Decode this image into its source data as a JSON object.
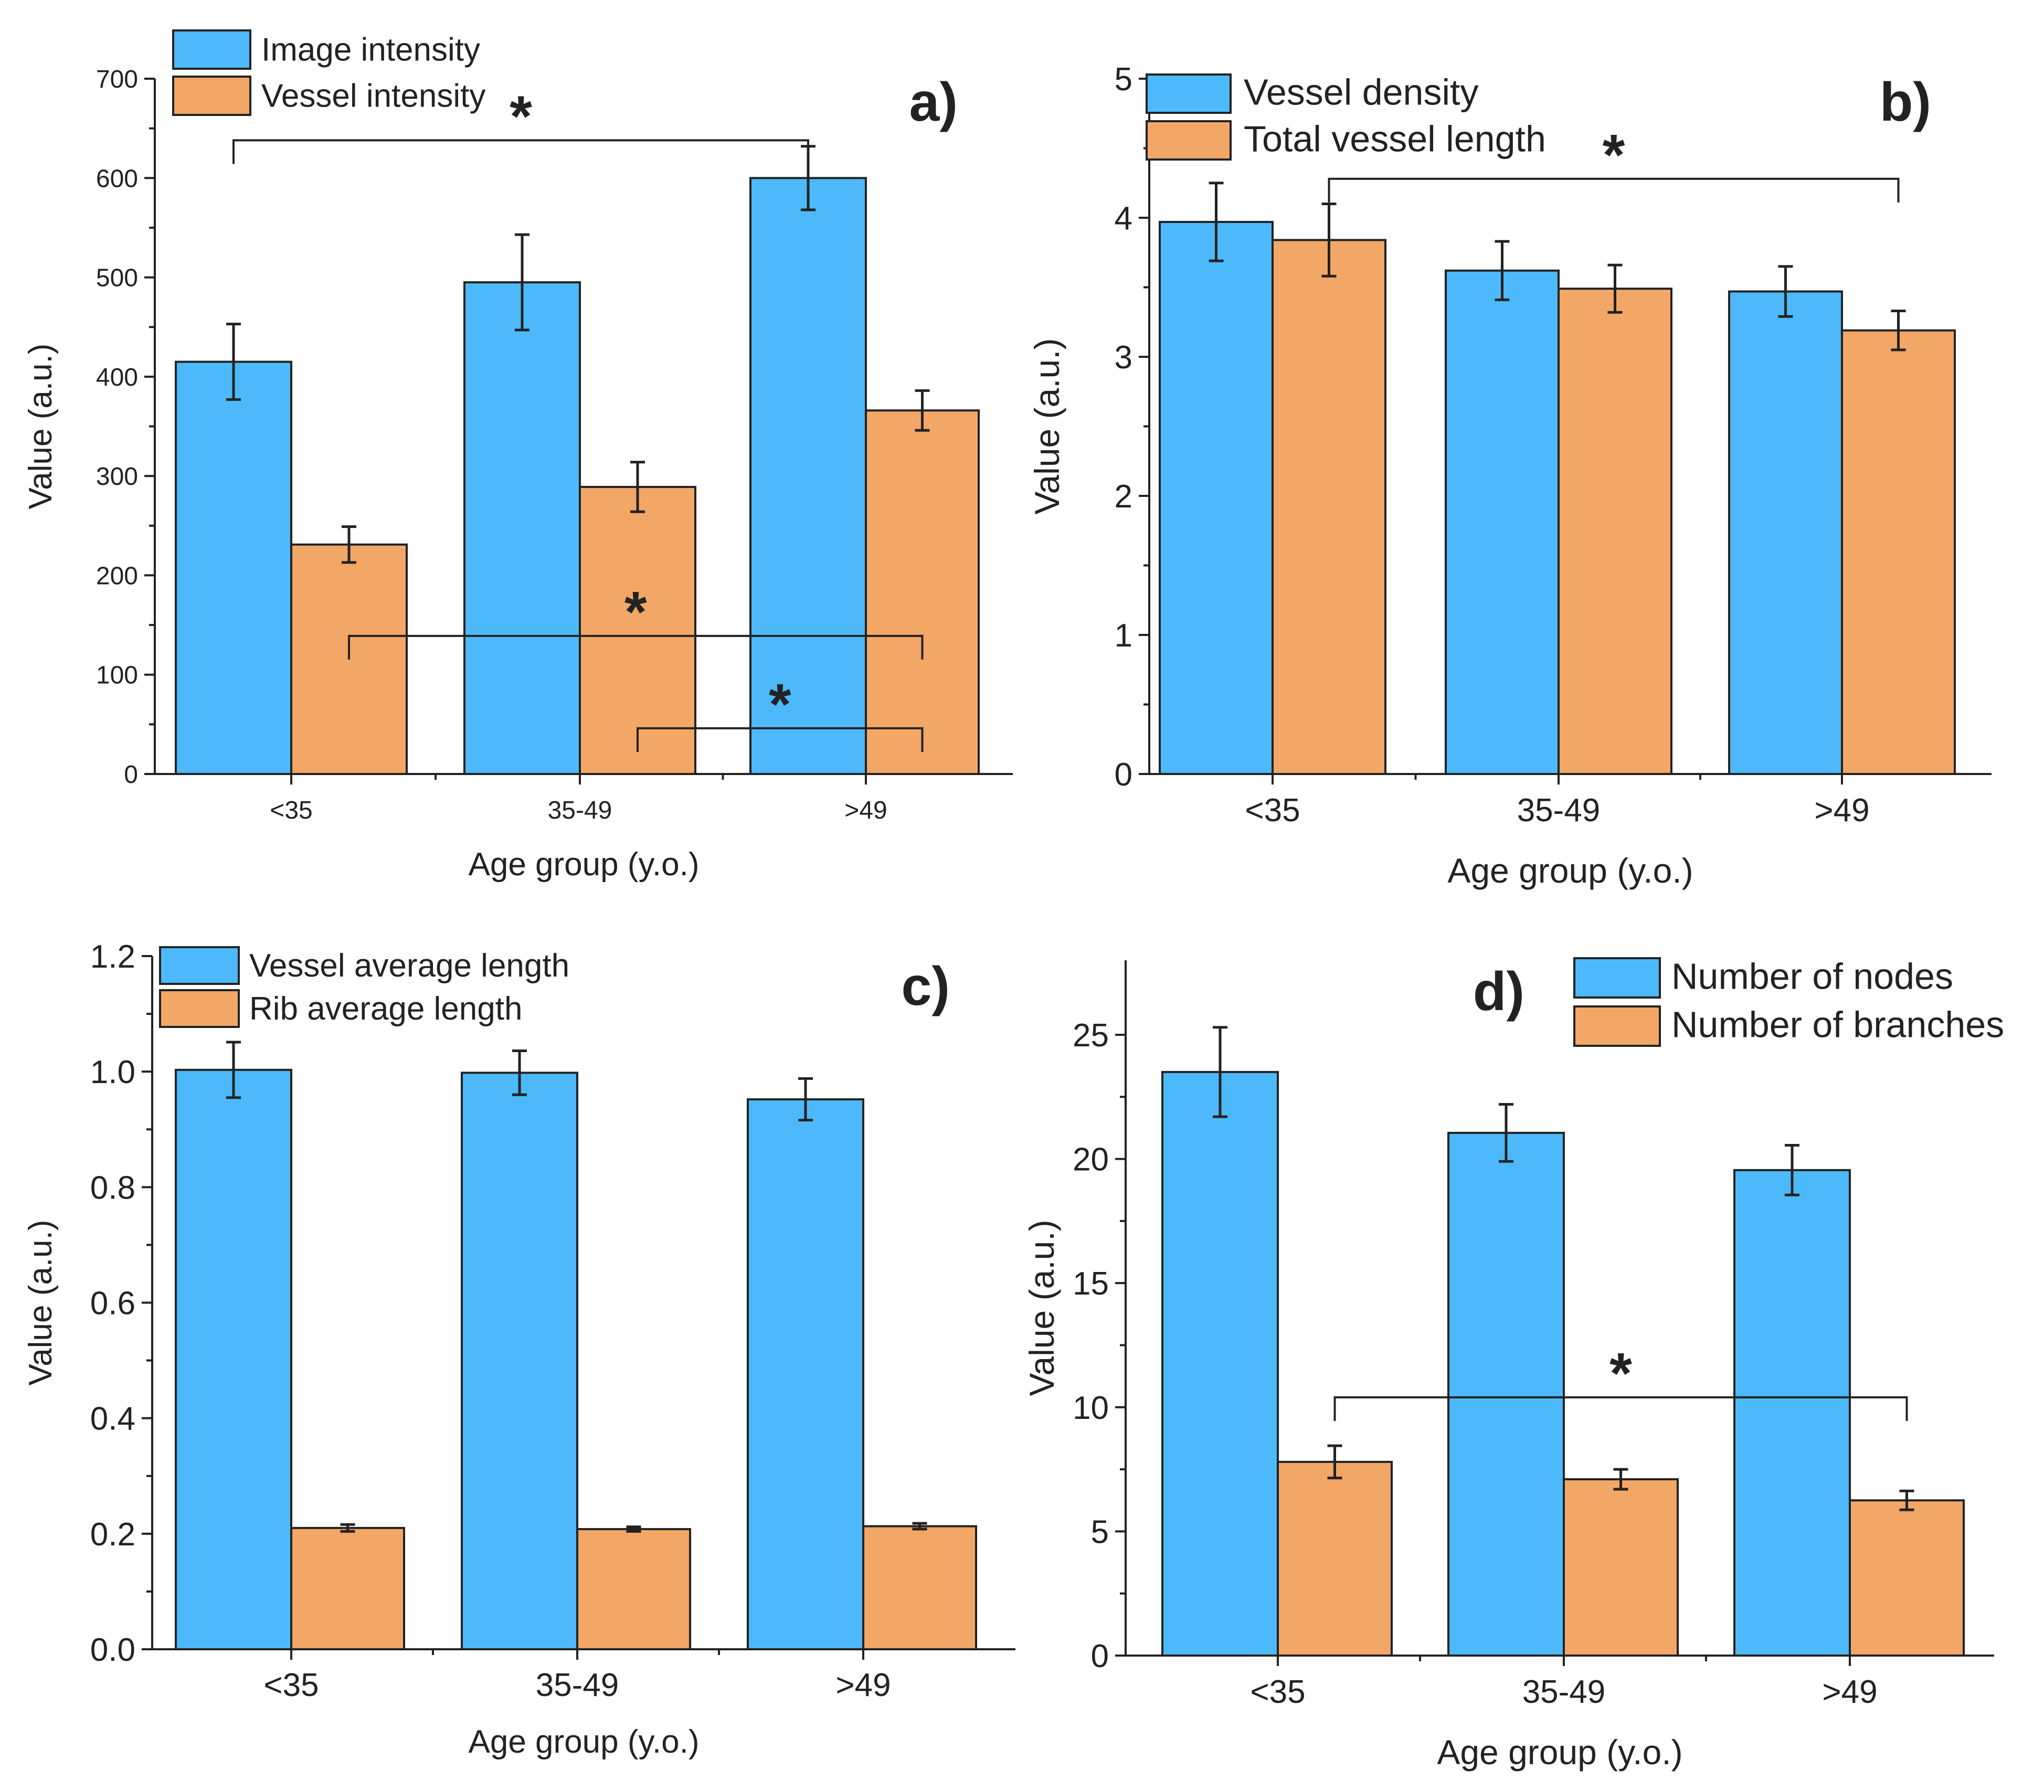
{
  "colors": {
    "series1": "#4DB9FA",
    "series2": "#F2A766",
    "axis": "#222222"
  },
  "chart_data": [
    {
      "type": "bar",
      "panel_label": "a)",
      "title": "",
      "xlabel": "Age group (y.o.)",
      "ylabel": "Value (a.u.)",
      "categories": [
        "<35",
        "35-49",
        ">49"
      ],
      "ylim": [
        0,
        700
      ],
      "yticks": [
        0,
        100,
        200,
        300,
        400,
        500,
        600,
        700
      ],
      "yticks_display": [
        "0",
        "100",
        "200",
        "300",
        "400",
        "500",
        "600",
        "700"
      ],
      "legend_position": "top-left",
      "series": [
        {
          "name": "Image intensity",
          "values": [
            415,
            495,
            600
          ],
          "errors": [
            38,
            48,
            32
          ]
        },
        {
          "name": "Vessel intensity",
          "values": [
            231,
            289,
            366
          ],
          "errors": [
            18,
            25,
            20
          ]
        }
      ],
      "significance": [
        {
          "label": "*",
          "from": [
            0,
            0
          ],
          "to": [
            2,
            0
          ],
          "level": 638
        },
        {
          "label": "*",
          "from": [
            0,
            1
          ],
          "to": [
            2,
            1
          ],
          "level": 139
        },
        {
          "label": "*",
          "from": [
            1,
            1
          ],
          "to": [
            2,
            1
          ],
          "level": 46
        }
      ]
    },
    {
      "type": "bar",
      "panel_label": "b)",
      "title": "",
      "xlabel": "Age group (y.o.)",
      "ylabel": "Value (a.u.)",
      "categories": [
        "<35",
        "35-49",
        ">49"
      ],
      "ylim": [
        0,
        5
      ],
      "yticks": [
        0,
        1,
        2,
        3,
        4,
        5
      ],
      "yticks_display": [
        "0",
        "1",
        "2",
        "3",
        "4",
        "5"
      ],
      "legend_position": "top-left",
      "series": [
        {
          "name": "Vessel density",
          "values": [
            3.97,
            3.62,
            3.47
          ],
          "errors": [
            0.28,
            0.21,
            0.18
          ]
        },
        {
          "name": "Total vessel length",
          "values": [
            3.84,
            3.49,
            3.19
          ],
          "errors": [
            0.26,
            0.17,
            0.14
          ]
        }
      ],
      "significance": [
        {
          "label": "*",
          "from": [
            0,
            1
          ],
          "to": [
            2,
            1
          ],
          "level": 4.28
        }
      ]
    },
    {
      "type": "bar",
      "panel_label": "c)",
      "title": "",
      "xlabel": "Age group (y.o.)",
      "ylabel": "Value (a.u.)",
      "categories": [
        "<35",
        "35-49",
        ">49"
      ],
      "ylim": [
        0,
        1.2
      ],
      "yticks": [
        0,
        0.2,
        0.4,
        0.6,
        0.8,
        1.0,
        1.2
      ],
      "yticks_display": [
        "0.0",
        "0.2",
        "0.4",
        "0.6",
        "0.8",
        "1.0",
        "1.2"
      ],
      "legend_position": "top-left",
      "series": [
        {
          "name": "Vessel average length",
          "values": [
            1.003,
            0.998,
            0.952
          ],
          "errors": [
            0.048,
            0.038,
            0.036
          ]
        },
        {
          "name": "Rib average length",
          "values": [
            0.21,
            0.208,
            0.213
          ],
          "errors": [
            0.006,
            0.004,
            0.005
          ]
        }
      ],
      "significance": []
    },
    {
      "type": "bar",
      "panel_label": "d)",
      "title": "",
      "xlabel": "Age group (y.o.)",
      "ylabel": "Value (a.u.)",
      "categories": [
        "<35",
        "35-49",
        ">49"
      ],
      "ylim": [
        0,
        28
      ],
      "yticks": [
        0,
        5,
        10,
        15,
        20,
        25
      ],
      "yticks_display": [
        "0",
        "5",
        "10",
        "15",
        "20",
        "25"
      ],
      "legend_position": "top-right",
      "series": [
        {
          "name": "Number of nodes",
          "values": [
            23.5,
            21.05,
            19.55
          ],
          "errors": [
            1.8,
            1.15,
            1.0
          ]
        },
        {
          "name": "Number of branches",
          "values": [
            7.8,
            7.1,
            6.25
          ],
          "errors": [
            0.65,
            0.4,
            0.38
          ]
        }
      ],
      "significance": [
        {
          "label": "*",
          "from": [
            0,
            1
          ],
          "to": [
            2,
            1
          ],
          "level": 10.4
        }
      ]
    }
  ]
}
